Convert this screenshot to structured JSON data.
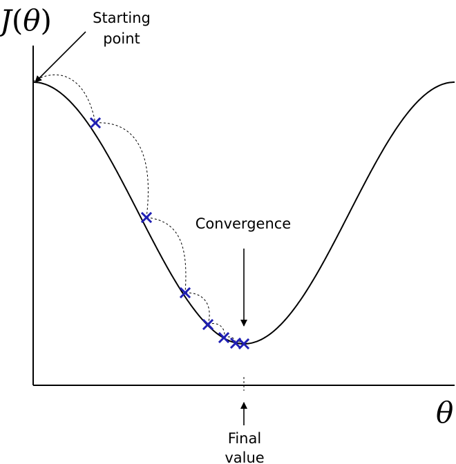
{
  "labels": {
    "y_axis_name": "J",
    "y_axis_open": "(",
    "y_axis_symbol": "θ",
    "y_axis_close": ")",
    "x_axis_symbol": "θ",
    "start_line1": "Starting",
    "start_line2": "point",
    "convergence": "Convergence",
    "final_line1": "Final",
    "final_line2": "value"
  },
  "colors": {
    "step_marker": "#1f1fb4",
    "curve": "#000000"
  },
  "icons": {
    "step_marker": "x-mark-icon",
    "arrowhead": "arrowhead-icon"
  }
}
